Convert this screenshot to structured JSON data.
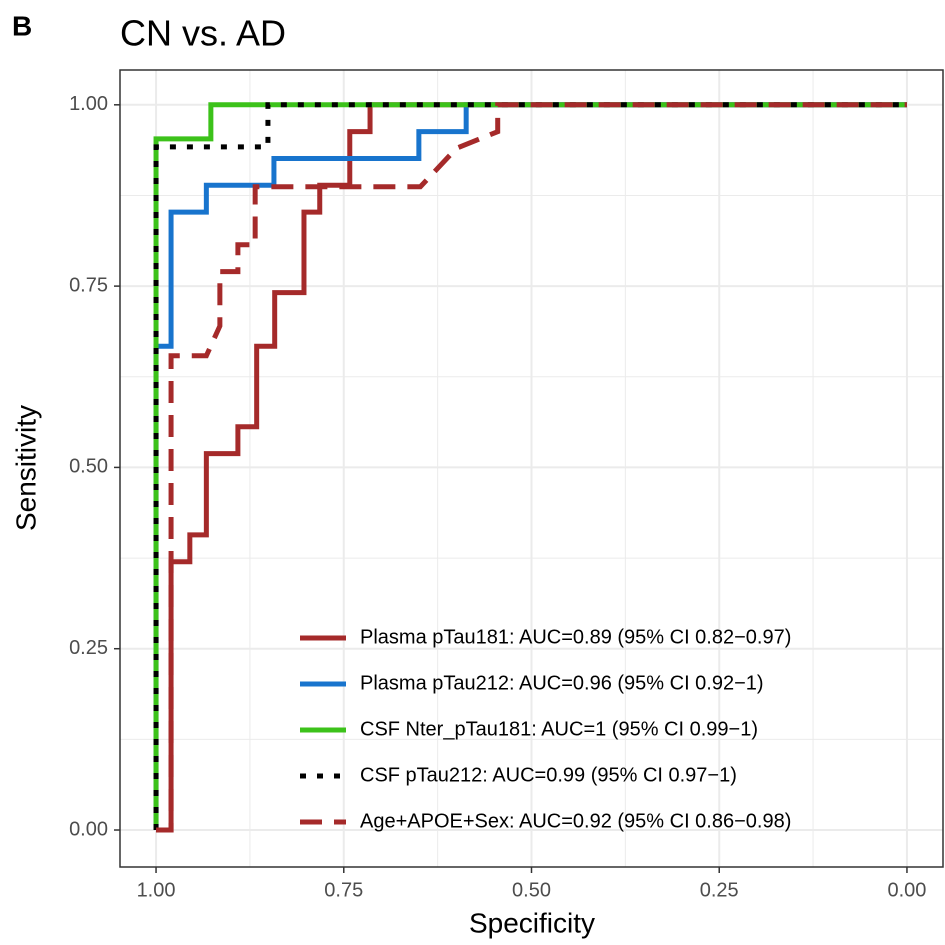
{
  "panel_label": "B",
  "chart_data": {
    "type": "line",
    "title": "CN vs. AD",
    "x_label": "Specificity",
    "y_label": "Sensitivity",
    "xlim": [
      1.048,
      -0.048
    ],
    "ylim": [
      -0.051,
      1.048
    ],
    "xticks": [
      {
        "value": 1,
        "label": "1.00"
      },
      {
        "value": 0.75,
        "label": "0.75"
      },
      {
        "value": 0.5,
        "label": "0.50"
      },
      {
        "value": 0.25,
        "label": "0.25"
      },
      {
        "value": 0,
        "label": "0.00"
      }
    ],
    "yticks": [
      {
        "value": 0,
        "label": "0.00"
      },
      {
        "value": 0.25,
        "label": "0.25"
      },
      {
        "value": 0.5,
        "label": "0.50"
      },
      {
        "value": 0.75,
        "label": "0.75"
      },
      {
        "value": 1,
        "label": "1.00"
      }
    ],
    "x_minor_ticks": [
      0.875,
      0.625,
      0.375,
      0.125
    ],
    "y_minor_ticks": [
      0.125,
      0.375,
      0.625,
      0.875
    ],
    "grid": true,
    "legend": "bottom-right",
    "series": [
      {
        "name": "Plasma pTau181: AUC=0.89 (95% CI 0.82−0.97)",
        "color": "#a52a2a",
        "linestyle": "solid",
        "x": [
          1,
          0.98,
          0.98,
          0.955,
          0.955,
          0.933,
          0.933,
          0.891,
          0.891,
          0.866,
          0.866,
          0.842,
          0.842,
          0.803,
          0.803,
          0.782,
          0.782,
          0.742,
          0.742,
          0.715,
          0.715,
          0
        ],
        "values": [
          0,
          0,
          0.37,
          0.37,
          0.407,
          0.407,
          0.519,
          0.519,
          0.556,
          0.556,
          0.667,
          0.667,
          0.741,
          0.741,
          0.852,
          0.852,
          0.889,
          0.889,
          0.963,
          0.963,
          1,
          1
        ]
      },
      {
        "name": "Plasma pTau212: AUC=0.96 (95% CI 0.92−1)",
        "color": "#1874cd",
        "linestyle": "solid",
        "x": [
          1,
          1,
          0.98,
          0.98,
          0.933,
          0.933,
          0.843,
          0.843,
          0.65,
          0.65,
          0.587,
          0.587,
          0
        ],
        "values": [
          0,
          0.667,
          0.667,
          0.852,
          0.852,
          0.889,
          0.889,
          0.926,
          0.926,
          0.963,
          0.963,
          1,
          1
        ]
      },
      {
        "name": "CSF Nter_pTau181: AUC=1 (95% CI 0.99−1)",
        "color": "#3cc21a",
        "linestyle": "solid",
        "x": [
          1,
          1,
          0.927,
          0.927,
          0
        ],
        "values": [
          0,
          0.953,
          0.953,
          1,
          1
        ]
      },
      {
        "name": "CSF pTau212: AUC=0.99 (95% CI 0.97−1)",
        "color": "#000000",
        "linestyle": "dotted",
        "x": [
          1,
          1,
          0.851,
          0.851,
          0
        ],
        "values": [
          0,
          0.942,
          0.942,
          1,
          1
        ]
      },
      {
        "name": "Age+APOE+Sex: AUC=0.92 (95% CI 0.86−0.98)",
        "color": "#a52a2a",
        "linestyle": "dashed",
        "x": [
          1,
          0.98,
          0.98,
          0.933,
          0.915,
          0.915,
          0.891,
          0.891,
          0.868,
          0.868,
          0.648,
          0.6,
          0.545,
          0.545,
          0
        ],
        "values": [
          0,
          0,
          0.654,
          0.654,
          0.695,
          0.77,
          0.77,
          0.807,
          0.807,
          0.887,
          0.887,
          0.94,
          0.963,
          1,
          1
        ]
      }
    ]
  }
}
